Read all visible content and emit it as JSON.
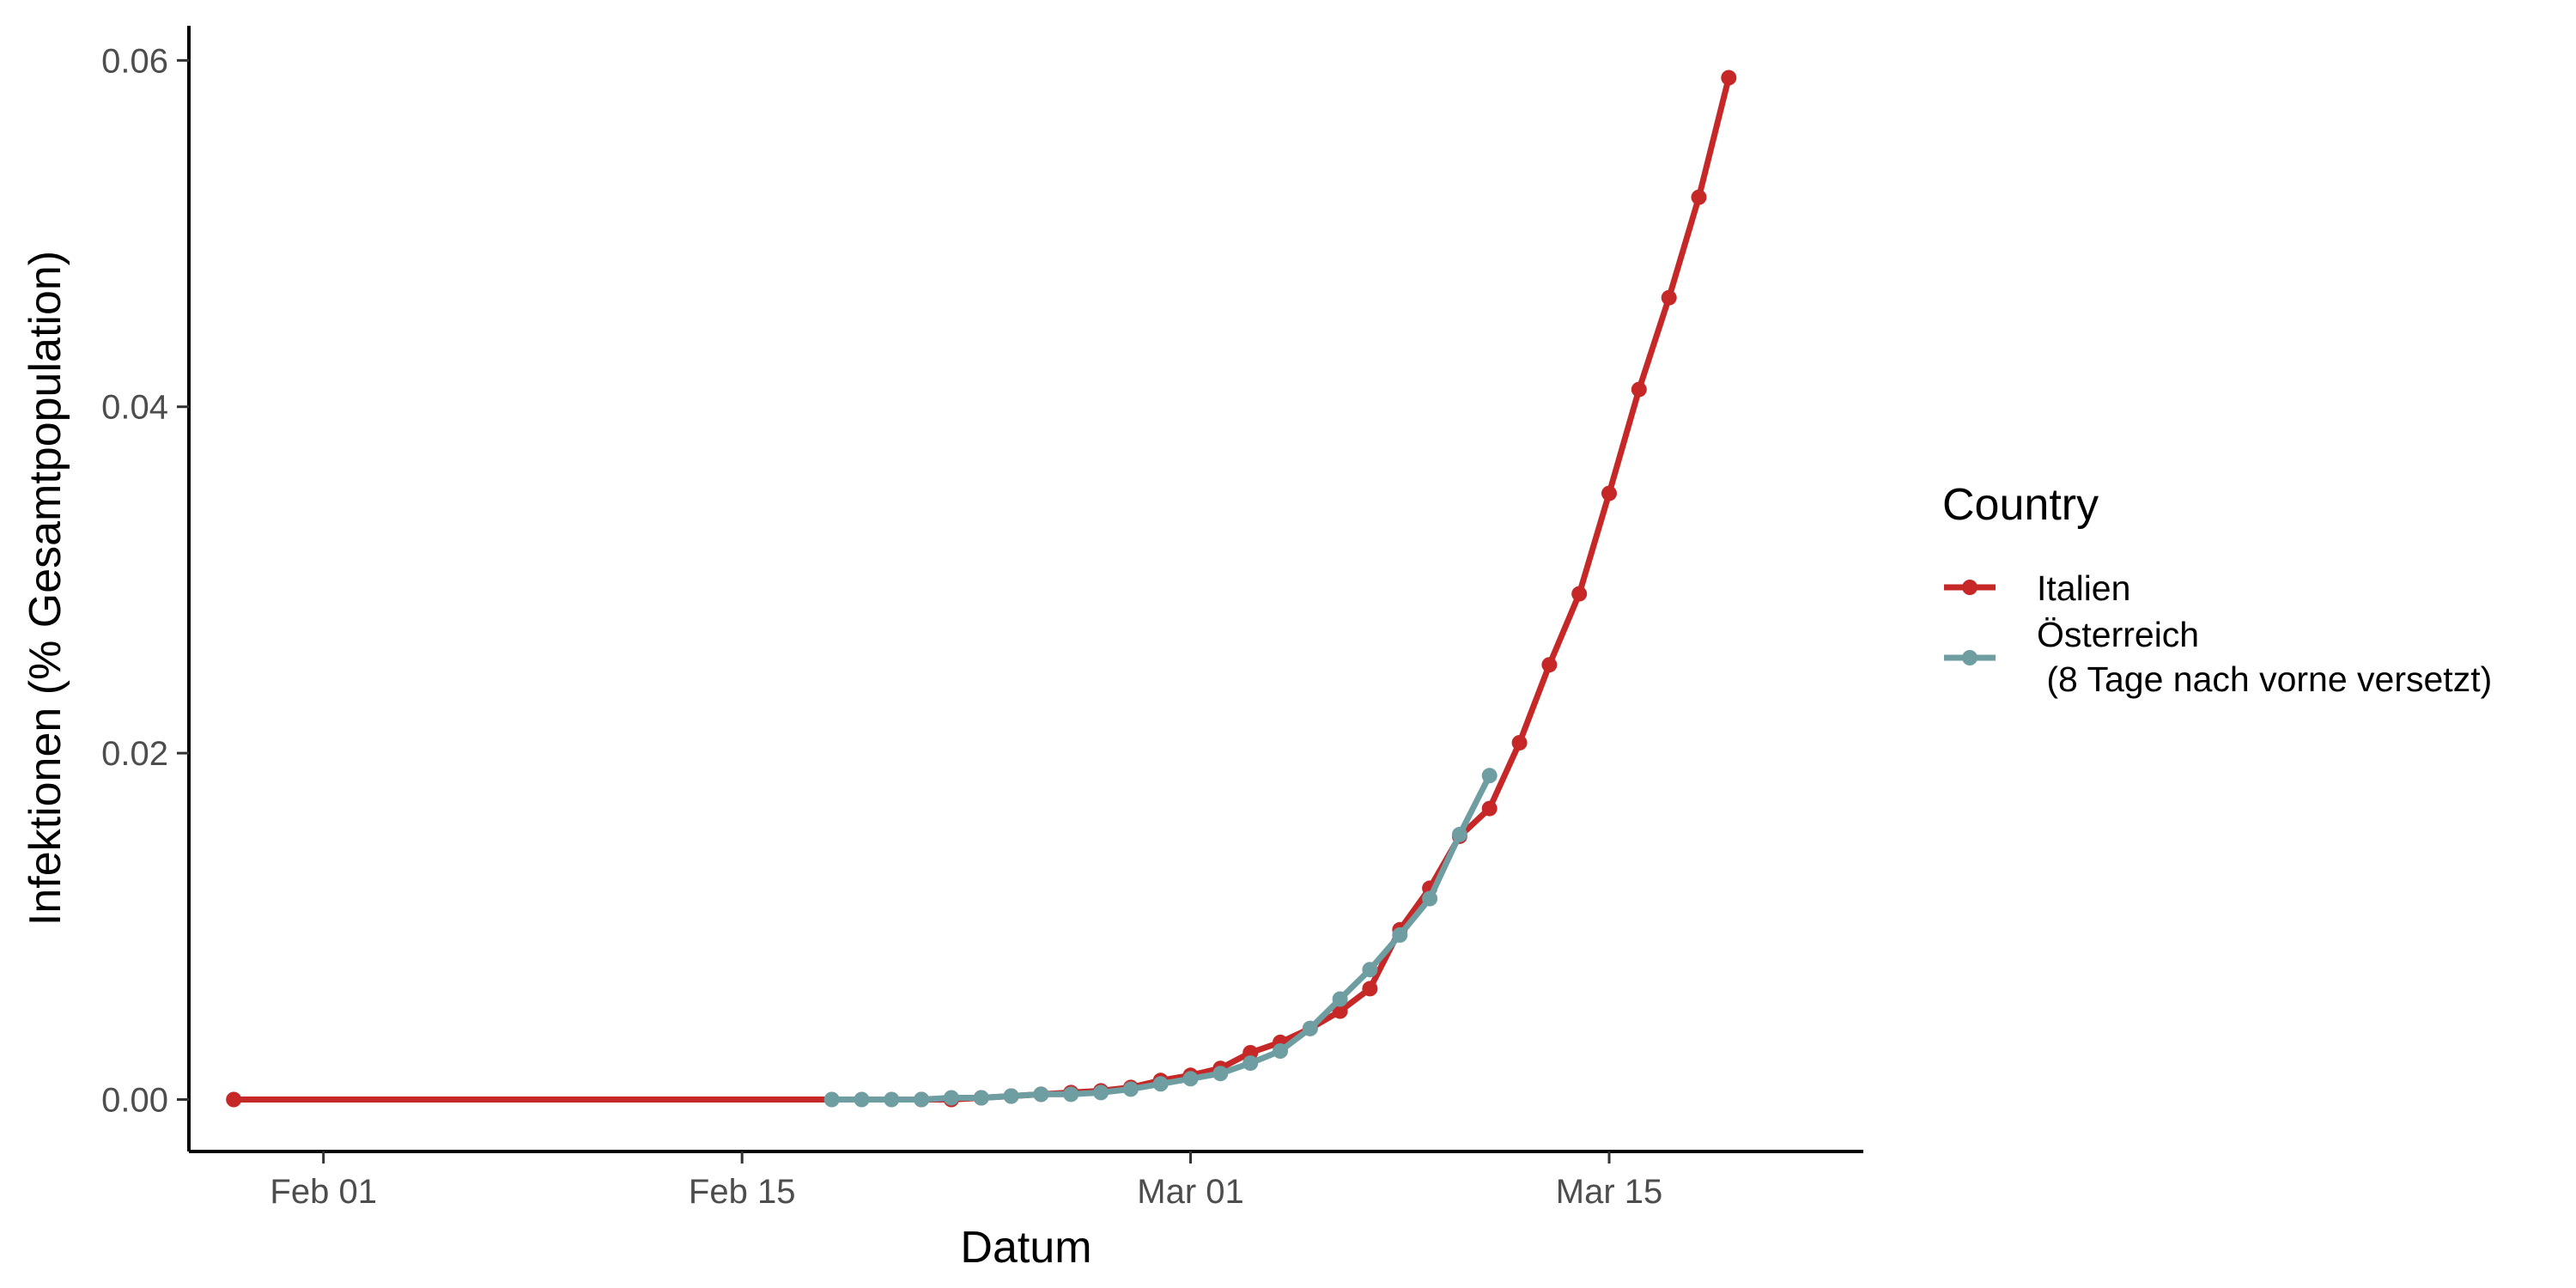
{
  "chart_data": {
    "type": "line",
    "title": "",
    "xlabel": "Datum",
    "ylabel": "Infektionen (% Gesamtpopulation)",
    "x_ticks": [
      {
        "date": "2020-02-01",
        "label": "Feb 01"
      },
      {
        "date": "2020-02-15",
        "label": "Feb 15"
      },
      {
        "date": "2020-03-01",
        "label": "Mar 01"
      },
      {
        "date": "2020-03-15",
        "label": "Mar 15"
      }
    ],
    "y_ticks": [
      {
        "value": 0.0,
        "label": "0.00"
      },
      {
        "value": 0.02,
        "label": "0.02"
      },
      {
        "value": 0.04,
        "label": "0.04"
      },
      {
        "value": 0.06,
        "label": "0.06"
      }
    ],
    "xlim": [
      "2020-01-27T12:00",
      "2020-03-23T12:00"
    ],
    "ylim": [
      -0.003,
      0.062
    ],
    "grid": false,
    "legend": {
      "title": "Country",
      "position": "right"
    },
    "series": [
      {
        "name": "Italien",
        "color": "#c62828",
        "points": [
          {
            "x": "2020-01-29",
            "y": 0.0
          },
          {
            "x": "2020-02-21",
            "y": 0.0
          },
          {
            "x": "2020-02-22",
            "y": 0.0
          },
          {
            "x": "2020-02-23",
            "y": 0.0001
          },
          {
            "x": "2020-02-24",
            "y": 0.0002
          },
          {
            "x": "2020-02-25",
            "y": 0.0003
          },
          {
            "x": "2020-02-26",
            "y": 0.0004
          },
          {
            "x": "2020-02-27",
            "y": 0.0005
          },
          {
            "x": "2020-02-28",
            "y": 0.0007
          },
          {
            "x": "2020-02-29",
            "y": 0.0011
          },
          {
            "x": "2020-03-01",
            "y": 0.0014
          },
          {
            "x": "2020-03-02",
            "y": 0.0018
          },
          {
            "x": "2020-03-03",
            "y": 0.0027
          },
          {
            "x": "2020-03-04",
            "y": 0.0033
          },
          {
            "x": "2020-03-05",
            "y": 0.0041
          },
          {
            "x": "2020-03-06",
            "y": 0.0051
          },
          {
            "x": "2020-03-07",
            "y": 0.0064
          },
          {
            "x": "2020-03-08",
            "y": 0.0098
          },
          {
            "x": "2020-03-09",
            "y": 0.0122
          },
          {
            "x": "2020-03-10",
            "y": 0.0152
          },
          {
            "x": "2020-03-11",
            "y": 0.0168
          },
          {
            "x": "2020-03-12",
            "y": 0.0206
          },
          {
            "x": "2020-03-13",
            "y": 0.0251
          },
          {
            "x": "2020-03-14",
            "y": 0.0292
          },
          {
            "x": "2020-03-15",
            "y": 0.035
          },
          {
            "x": "2020-03-16",
            "y": 0.041
          },
          {
            "x": "2020-03-17",
            "y": 0.0463
          },
          {
            "x": "2020-03-18",
            "y": 0.0521
          },
          {
            "x": "2020-03-19",
            "y": 0.059
          }
        ]
      },
      {
        "name": "Österreich\n (8 Tage nach vorne versetzt)",
        "color": "#6e9ea1",
        "points": [
          {
            "x": "2020-02-18",
            "y": 0.0
          },
          {
            "x": "2020-02-19",
            "y": 0.0
          },
          {
            "x": "2020-02-20",
            "y": 0.0
          },
          {
            "x": "2020-02-21",
            "y": 0.0
          },
          {
            "x": "2020-02-22",
            "y": 0.0001
          },
          {
            "x": "2020-02-23",
            "y": 0.0001
          },
          {
            "x": "2020-02-24",
            "y": 0.0002
          },
          {
            "x": "2020-02-25",
            "y": 0.0003
          },
          {
            "x": "2020-02-26",
            "y": 0.0003
          },
          {
            "x": "2020-02-27",
            "y": 0.0004
          },
          {
            "x": "2020-02-28",
            "y": 0.0006
          },
          {
            "x": "2020-02-29",
            "y": 0.0009
          },
          {
            "x": "2020-03-01",
            "y": 0.0012
          },
          {
            "x": "2020-03-02",
            "y": 0.0015
          },
          {
            "x": "2020-03-03",
            "y": 0.0021
          },
          {
            "x": "2020-03-04",
            "y": 0.0028
          },
          {
            "x": "2020-03-05",
            "y": 0.0041
          },
          {
            "x": "2020-03-06",
            "y": 0.0058
          },
          {
            "x": "2020-03-07",
            "y": 0.0075
          },
          {
            "x": "2020-03-08",
            "y": 0.0095
          },
          {
            "x": "2020-03-09",
            "y": 0.0116
          },
          {
            "x": "2020-03-10",
            "y": 0.0153
          },
          {
            "x": "2020-03-11",
            "y": 0.0187
          }
        ]
      }
    ]
  }
}
